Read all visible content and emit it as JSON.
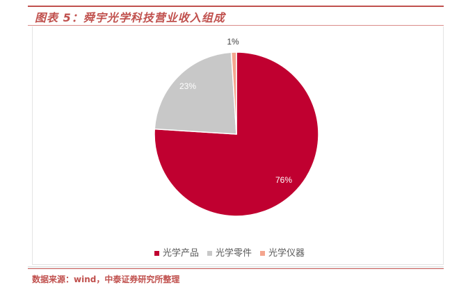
{
  "title": "图表 5：舜宇光学科技营业收入组成",
  "source": "数据来源：wind，中泰证券研究所整理",
  "chart_data": {
    "type": "pie",
    "title": "",
    "categories": [
      "光学产品",
      "光学零件",
      "光学仪器"
    ],
    "values": [
      76,
      23,
      1
    ],
    "labels": [
      "76%",
      "23%",
      "1%"
    ],
    "colors": [
      "#c00030",
      "#c8c8c8",
      "#f4a58e"
    ],
    "start": "12 o'clock, clockwise",
    "legend_position": "bottom"
  }
}
